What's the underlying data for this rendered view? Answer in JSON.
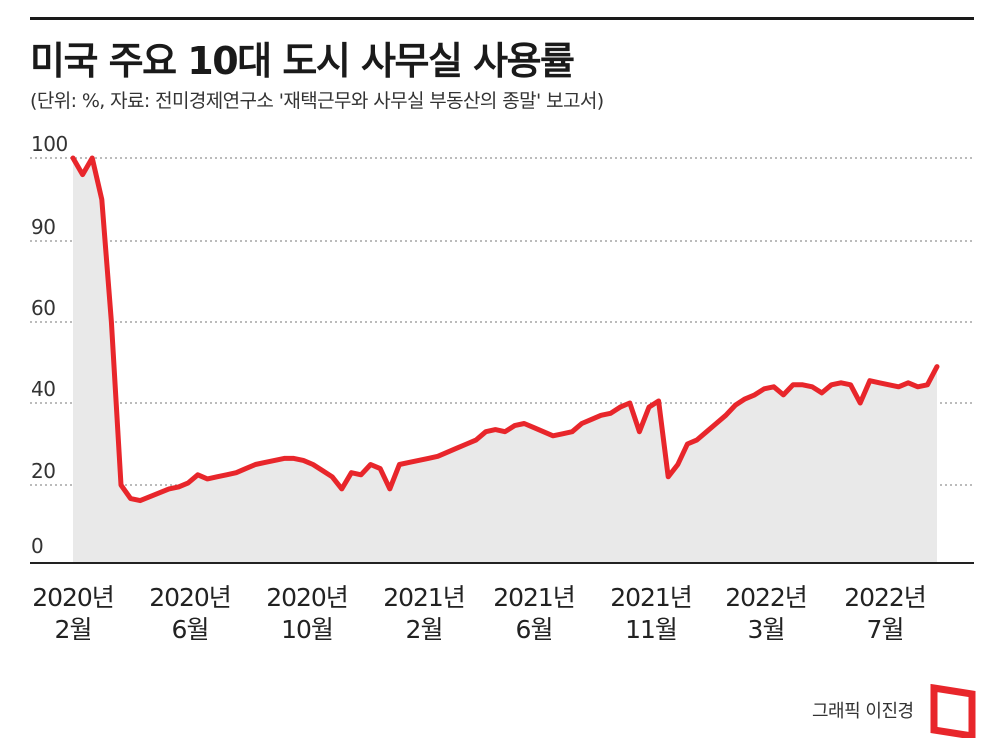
{
  "title": "미국 주요 10대 도시 사무실 사용률",
  "subtitle": "(단위: %, 자료:  전미경제연구소 '재택근무와 사무실 부동산의 종말' 보고서)",
  "credit": "그래픽 이진경",
  "colors": {
    "line": "#e8262b",
    "area": "#e9e9e9",
    "logo": "#e8262b",
    "text": "#1a1a1a"
  },
  "logo_icon": "red-bracket-logo",
  "chart_data": {
    "type": "area",
    "title": "미국 주요 10대 도시 사무실 사용률",
    "unit": "%",
    "ytick_labels": [
      "0",
      "20",
      "40",
      "60",
      "90",
      "100"
    ],
    "xtick_labels": [
      [
        "2020년",
        "2월"
      ],
      [
        "2020년",
        "6월"
      ],
      [
        "2020년",
        "10월"
      ],
      [
        "2021년",
        "2월"
      ],
      [
        "2021년",
        "6월"
      ],
      [
        "2021년",
        "11월"
      ],
      [
        "2022년",
        "3월"
      ],
      [
        "2022년",
        "7월"
      ]
    ],
    "grid": true,
    "series": [
      {
        "values": [
          100,
          98,
          100,
          95,
          60,
          20,
          16.5,
          16,
          17,
          18,
          19,
          19.5,
          20.5,
          22.5,
          21.5,
          22,
          22.5,
          23,
          24,
          25,
          25.5,
          26,
          26.5,
          26.5,
          26,
          25,
          23.5,
          22,
          19,
          23,
          22.5,
          25,
          24,
          19,
          25,
          25.5,
          26,
          26.5,
          27,
          28,
          29,
          30,
          31,
          33,
          33.5,
          33,
          34.5,
          35,
          34,
          33,
          32,
          32.5,
          33,
          35,
          36,
          37,
          37.5,
          39,
          40,
          33,
          39,
          40.5,
          22,
          25,
          30,
          31,
          33,
          35,
          37,
          39.5,
          41,
          42,
          43.5,
          44,
          42,
          44.5,
          44.5,
          44,
          42.5,
          44.5,
          45,
          44.5,
          40,
          45.5,
          45,
          44.5,
          44,
          45,
          44,
          44.5,
          49
        ]
      }
    ]
  }
}
